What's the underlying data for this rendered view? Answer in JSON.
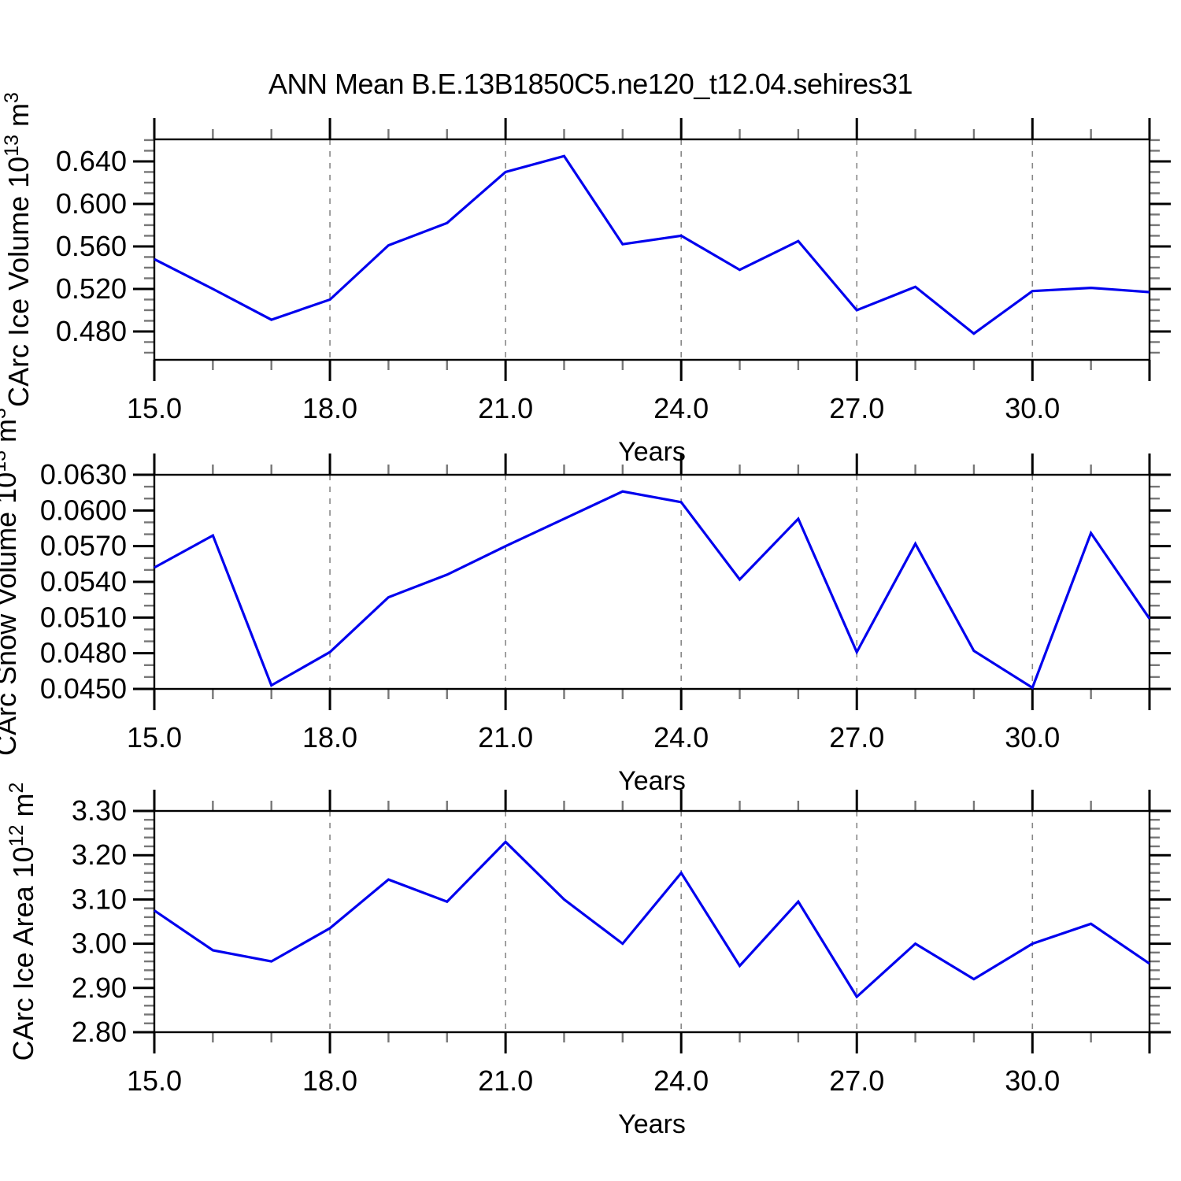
{
  "title": "ANN Mean B.E.13B1850C5.ne120_t12.04.sehires31",
  "xlabel": "Years",
  "colors": {
    "line": "#0000EE",
    "frame": "#000000",
    "minor_tick": "#777777",
    "grid": "#888888",
    "text": "#000000",
    "background": "#FFFFFF"
  },
  "chart_data": [
    {
      "type": "line",
      "title": "ANN Mean B.E.13B1850C5.ne120_t12.04.sehires31",
      "ylabel": "CArc Ice Volume 10^13 m^3",
      "ylabel_parts": [
        {
          "t": "CArc Ice Volume 10"
        },
        {
          "t": "13",
          "sup": true
        },
        {
          "t": " m"
        },
        {
          "t": "3",
          "sup": true
        }
      ],
      "xlabel": "Years",
      "x": [
        15,
        16,
        17,
        18,
        19,
        20,
        21,
        22,
        23,
        24,
        25,
        26,
        27,
        28,
        29,
        30,
        31,
        32
      ],
      "values": [
        0.548,
        0.52,
        0.491,
        0.51,
        0.561,
        0.582,
        0.63,
        0.645,
        0.562,
        0.57,
        0.538,
        0.565,
        0.5,
        0.522,
        0.478,
        0.518,
        0.521,
        0.517
      ],
      "ylim": [
        0.4533,
        0.6607
      ],
      "xlim": [
        15.0,
        32.0
      ],
      "yticks": [
        {
          "v": 0.64,
          "label": "0.640"
        },
        {
          "v": 0.6,
          "label": "0.600"
        },
        {
          "v": 0.56,
          "label": "0.560"
        },
        {
          "v": 0.52,
          "label": "0.520"
        },
        {
          "v": 0.48,
          "label": "0.480"
        }
      ],
      "y_minor_step": 0.01,
      "xticks": [
        {
          "v": 15,
          "label": "15.0"
        },
        {
          "v": 18,
          "label": "18.0"
        },
        {
          "v": 21,
          "label": "21.0"
        },
        {
          "v": 24,
          "label": "24.0"
        },
        {
          "v": 27,
          "label": "27.0"
        },
        {
          "v": 30,
          "label": "30.0"
        }
      ],
      "x_minor_step": 1,
      "grid_x": [
        18,
        21,
        24,
        27,
        30
      ],
      "grid_style": "dashed-vertical",
      "legend": "none"
    },
    {
      "type": "line",
      "title": "",
      "ylabel": "CArc Snow Volume 10^13 m^3",
      "ylabel_parts": [
        {
          "t": "CArc Snow Volume 10"
        },
        {
          "t": "13",
          "sup": true
        },
        {
          "t": " m"
        },
        {
          "t": "3",
          "sup": true
        }
      ],
      "xlabel": "Years",
      "x": [
        15,
        16,
        17,
        18,
        19,
        20,
        21,
        22,
        23,
        24,
        25,
        26,
        27,
        28,
        29,
        30,
        31,
        32
      ],
      "values": [
        0.0552,
        0.0579,
        0.0453,
        0.0481,
        0.0527,
        0.0546,
        0.057,
        0.0593,
        0.0616,
        0.0607,
        0.0542,
        0.0593,
        0.0481,
        0.0572,
        0.0482,
        0.0451,
        0.0581,
        0.0509
      ],
      "ylim": [
        0.045,
        0.063
      ],
      "xlim": [
        15.0,
        32.0
      ],
      "yticks": [
        {
          "v": 0.063,
          "label": "0.0630"
        },
        {
          "v": 0.06,
          "label": "0.0600"
        },
        {
          "v": 0.057,
          "label": "0.0570"
        },
        {
          "v": 0.054,
          "label": "0.0540"
        },
        {
          "v": 0.051,
          "label": "0.0510"
        },
        {
          "v": 0.048,
          "label": "0.0480"
        },
        {
          "v": 0.045,
          "label": "0.0450"
        }
      ],
      "y_minor_step": 0.001,
      "xticks": [
        {
          "v": 15,
          "label": "15.0"
        },
        {
          "v": 18,
          "label": "18.0"
        },
        {
          "v": 21,
          "label": "21.0"
        },
        {
          "v": 24,
          "label": "24.0"
        },
        {
          "v": 27,
          "label": "27.0"
        },
        {
          "v": 30,
          "label": "30.0"
        }
      ],
      "x_minor_step": 1,
      "grid_x": [
        18,
        21,
        24,
        27,
        30
      ],
      "grid_style": "dashed-vertical",
      "legend": "none"
    },
    {
      "type": "line",
      "title": "",
      "ylabel": "CArc Ice Area 10^12 m^2",
      "ylabel_parts": [
        {
          "t": "CArc Ice Area 10"
        },
        {
          "t": "12",
          "sup": true
        },
        {
          "t": " m"
        },
        {
          "t": "2",
          "sup": true
        }
      ],
      "xlabel": "Years",
      "x": [
        15,
        16,
        17,
        18,
        19,
        20,
        21,
        22,
        23,
        24,
        25,
        26,
        27,
        28,
        29,
        30,
        31,
        32
      ],
      "values": [
        3.075,
        2.985,
        2.96,
        3.035,
        3.145,
        3.095,
        3.23,
        3.1,
        3.0,
        3.16,
        2.95,
        3.095,
        2.88,
        3.0,
        2.92,
        3.0,
        3.045,
        2.955
      ],
      "ylim": [
        2.8,
        3.3
      ],
      "xlim": [
        15.0,
        32.0
      ],
      "yticks": [
        {
          "v": 3.3,
          "label": "3.30"
        },
        {
          "v": 3.2,
          "label": "3.20"
        },
        {
          "v": 3.1,
          "label": "3.10"
        },
        {
          "v": 3.0,
          "label": "3.00"
        },
        {
          "v": 2.9,
          "label": "2.90"
        },
        {
          "v": 2.8,
          "label": "2.80"
        }
      ],
      "y_minor_step": 0.02,
      "xticks": [
        {
          "v": 15,
          "label": "15.0"
        },
        {
          "v": 18,
          "label": "18.0"
        },
        {
          "v": 21,
          "label": "21.0"
        },
        {
          "v": 24,
          "label": "24.0"
        },
        {
          "v": 27,
          "label": "27.0"
        },
        {
          "v": 30,
          "label": "30.0"
        }
      ],
      "x_minor_step": 1,
      "grid_x": [
        18,
        21,
        24,
        27,
        30
      ],
      "grid_style": "dashed-vertical",
      "legend": "none"
    }
  ]
}
